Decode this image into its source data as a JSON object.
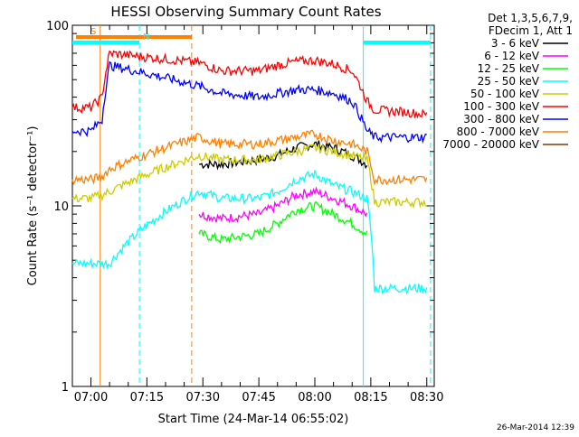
{
  "chart_data": {
    "type": "line",
    "title": "HESSI Observing Summary Count Rates",
    "xlabel": "Start Time (24-Mar-14 06:55:02)",
    "ylabel": "Count Rate (s⁻¹ detector⁻¹)",
    "ylog": true,
    "ylim": [
      1,
      100
    ],
    "xlim": [
      "06:55:02",
      "08:32:00"
    ],
    "x_ticks": [
      "07:00",
      "07:15",
      "07:30",
      "07:45",
      "08:00",
      "08:15",
      "08:30"
    ],
    "y_ticks": [
      "1",
      "10",
      "100"
    ],
    "grid": false,
    "legend_placement": "right",
    "legend_header": [
      "Det 1,3,5,6,7,9,",
      "FDecim 1, Att 1"
    ],
    "footer": "26-Mar-2014 12:39",
    "flags": [
      {
        "label": "S",
        "start": "06:56:00",
        "end": "07:27:00",
        "color": "#ff7f00"
      },
      {
        "label": "N",
        "start": "06:55:02",
        "end": "07:13:00",
        "color": "#00ffff"
      },
      {
        "label": "",
        "start": "08:13:00",
        "end": "08:31:00",
        "color": "#00ffff"
      }
    ],
    "vlines": [
      {
        "time": "07:02:30",
        "color": "#ff7f00",
        "style": "solid"
      },
      {
        "time": "07:13:00",
        "color": "#00ffff",
        "style": "dashed"
      },
      {
        "time": "07:27:00",
        "color": "#ff7f00",
        "style": "dashed"
      },
      {
        "time": "08:13:00",
        "color": "#00ffff",
        "style": "solid"
      },
      {
        "time": "08:31:00",
        "color": "#00ffff",
        "style": "dashed"
      }
    ],
    "x": [
      "06:55",
      "07:00",
      "07:03",
      "07:05",
      "07:29",
      "07:35",
      "07:45",
      "07:50",
      "07:55",
      "08:00",
      "08:05",
      "08:10",
      "08:14",
      "08:16",
      "08:25",
      "08:30"
    ],
    "series": [
      {
        "name": "3 - 6 keV",
        "color": "#000000",
        "values": [
          null,
          null,
          null,
          null,
          17,
          17,
          18,
          19,
          21,
          22,
          21,
          19,
          17,
          null,
          null,
          null
        ]
      },
      {
        "name": "6 - 12 keV",
        "color": "#ff00ff",
        "values": [
          null,
          null,
          null,
          null,
          9,
          8.5,
          9,
          10,
          11.5,
          12,
          11,
          10,
          9,
          null,
          null,
          null
        ]
      },
      {
        "name": "12 - 25 keV",
        "color": "#00ff00",
        "values": [
          null,
          null,
          null,
          null,
          7,
          6.5,
          7,
          8,
          9.5,
          10,
          9,
          8,
          7,
          null,
          null,
          null
        ]
      },
      {
        "name": "25 - 50 keV",
        "color": "#00ffff",
        "values": [
          4.8,
          4.8,
          4.8,
          4.8,
          12,
          11,
          11,
          12,
          14,
          15,
          13,
          12,
          11,
          3.5,
          3.5,
          3.5
        ]
      },
      {
        "name": "50 - 100 keV",
        "color": "#cccc00",
        "values": [
          11,
          11,
          11.5,
          12,
          19,
          18,
          18,
          19,
          20,
          21,
          20,
          19,
          18,
          10.5,
          10.5,
          10.5
        ]
      },
      {
        "name": "100 - 300 keV",
        "color": "#ff0000",
        "values": [
          35,
          35,
          40,
          70,
          62,
          56,
          56,
          60,
          63,
          64,
          61,
          56,
          38,
          34,
          33,
          32
        ]
      },
      {
        "name": "300 - 800 keV",
        "color": "#0000ff",
        "values": [
          26,
          26,
          30,
          60,
          46,
          42,
          40,
          42,
          44,
          44,
          42,
          38,
          26,
          24,
          24,
          24
        ]
      },
      {
        "name": "800 - 7000 keV",
        "color": "#ff7f00",
        "values": [
          14,
          14,
          14.5,
          16,
          24,
          22,
          22,
          23,
          24,
          25,
          23,
          22,
          20,
          14,
          14,
          14
        ]
      },
      {
        "name": "7000 - 20000 keV",
        "color": "#7f3f00",
        "values": [
          null,
          null,
          null,
          null,
          null,
          null,
          null,
          null,
          null,
          null,
          null,
          null,
          null,
          null,
          null,
          null
        ]
      }
    ]
  }
}
